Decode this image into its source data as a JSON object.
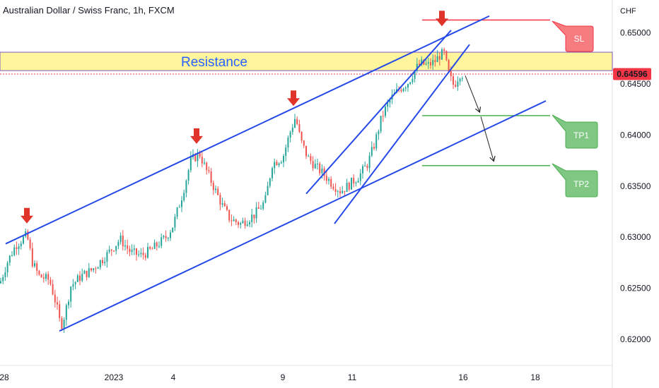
{
  "header": {
    "title": "Australian Dollar / Swiss Franc, 1h, FXCM",
    "currency": "CHF"
  },
  "price_tag": {
    "value": "0.64596",
    "color": "#f23645"
  },
  "resistance_label": "Resistance",
  "labels": {
    "sl": "SL",
    "tp1": "TP1",
    "tp2": "TP2"
  },
  "colors": {
    "up": "#26a69a",
    "down": "#ef5350",
    "channel": "#2549e8",
    "stop_loss": "#f23645",
    "take_profit": "#4caf50",
    "resistance_fill": "#fff59d",
    "resistance_border": "#7e57c2",
    "arrow_marker": "#e0342b"
  },
  "chart_data": {
    "type": "candlestick",
    "symbol": "Australian Dollar / Swiss Franc",
    "timeframe": "1h",
    "source": "FXCM",
    "x_tick_labels": [
      "28",
      "2023",
      "4",
      "9",
      "11",
      "16",
      "18"
    ],
    "y_tick_labels": [
      "0.65000",
      "0.64500",
      "0.64000",
      "0.63500",
      "0.63000",
      "0.62500",
      "0.62000"
    ],
    "ylim": [
      0.6195,
      0.6525
    ],
    "last_price": 0.64596,
    "price_path": [
      [
        0,
        0.6255
      ],
      [
        10,
        0.6275
      ],
      [
        22,
        0.6292
      ],
      [
        38,
        0.6302
      ],
      [
        46,
        0.6275
      ],
      [
        55,
        0.6262
      ],
      [
        70,
        0.6258
      ],
      [
        80,
        0.6233
      ],
      [
        86,
        0.6212
      ],
      [
        92,
        0.6225
      ],
      [
        100,
        0.6252
      ],
      [
        115,
        0.6262
      ],
      [
        130,
        0.6268
      ],
      [
        150,
        0.6282
      ],
      [
        170,
        0.6298
      ],
      [
        185,
        0.6285
      ],
      [
        200,
        0.6282
      ],
      [
        215,
        0.6288
      ],
      [
        235,
        0.63
      ],
      [
        245,
        0.6312
      ],
      [
        258,
        0.6342
      ],
      [
        270,
        0.6375
      ],
      [
        282,
        0.6382
      ],
      [
        292,
        0.6365
      ],
      [
        305,
        0.6345
      ],
      [
        315,
        0.633
      ],
      [
        325,
        0.6318
      ],
      [
        340,
        0.6313
      ],
      [
        360,
        0.6322
      ],
      [
        375,
        0.6335
      ],
      [
        385,
        0.6372
      ],
      [
        400,
        0.6378
      ],
      [
        410,
        0.6402
      ],
      [
        418,
        0.6418
      ],
      [
        425,
        0.6395
      ],
      [
        435,
        0.6378
      ],
      [
        448,
        0.6368
      ],
      [
        460,
        0.636
      ],
      [
        470,
        0.6352
      ],
      [
        482,
        0.6345
      ],
      [
        495,
        0.6352
      ],
      [
        508,
        0.636
      ],
      [
        520,
        0.6372
      ],
      [
        530,
        0.6392
      ],
      [
        540,
        0.6418
      ],
      [
        552,
        0.6435
      ],
      [
        565,
        0.6445
      ],
      [
        578,
        0.6452
      ],
      [
        588,
        0.6465
      ],
      [
        595,
        0.647
      ],
      [
        605,
        0.6468
      ],
      [
        615,
        0.6472
      ],
      [
        622,
        0.6478
      ],
      [
        628,
        0.648
      ],
      [
        635,
        0.6458
      ],
      [
        642,
        0.6448
      ],
      [
        650,
        0.646
      ],
      [
        655,
        0.6459
      ]
    ],
    "annotations": {
      "resistance_zone": [
        0.6463,
        0.6481
      ],
      "stop_loss": 0.65125,
      "take_profit_1": 0.6419,
      "take_profit_2": 0.637,
      "channel_lines": [
        [
          [
            8,
            0.62935
          ],
          [
            692,
            0.65164
          ]
        ],
        [
          [
            84,
            0.62081
          ],
          [
            772,
            0.64334
          ]
        ],
        [
          [
            433,
            0.63425
          ],
          [
            638,
            0.65025
          ]
        ],
        [
          [
            473,
            0.63132
          ],
          [
            664,
            0.64885
          ]
        ]
      ],
      "down_arrow_markers": [
        [
          38,
          0.6312
        ],
        [
          278,
          0.639
        ],
        [
          415,
          0.6427
        ],
        [
          625,
          0.6505
        ]
      ],
      "projection_arrows": [
        [
          [
            658,
            0.6458
          ],
          [
            678,
            0.6423
          ]
        ],
        [
          [
            680,
            0.6418
          ],
          [
            698,
            0.6375
          ]
        ]
      ]
    }
  }
}
